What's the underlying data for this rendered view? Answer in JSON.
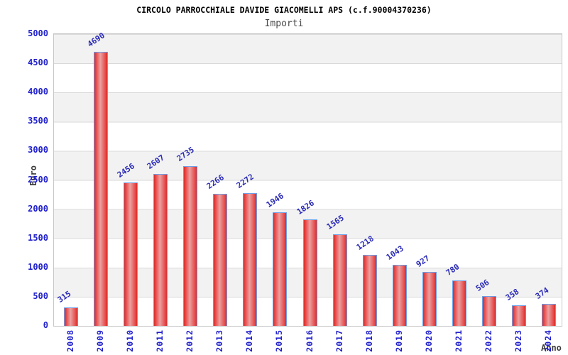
{
  "title": "CIRCOLO PARROCCHIALE DAVIDE GIACOMELLI APS (c.f.90004370236)",
  "subtitle": "Importi",
  "chart_data": {
    "type": "bar",
    "title": "CIRCOLO PARROCCHIALE DAVIDE GIACOMELLI APS (c.f.90004370236)",
    "subtitle": "Importi",
    "xlabel": "Anno",
    "ylabel": "Euro",
    "categories": [
      "2008",
      "2009",
      "2010",
      "2011",
      "2012",
      "2013",
      "2014",
      "2015",
      "2016",
      "2017",
      "2018",
      "2019",
      "2020",
      "2021",
      "2022",
      "2023",
      "2024"
    ],
    "values": [
      315,
      4690,
      2456,
      2607,
      2735,
      2266,
      2272,
      1946,
      1826,
      1565,
      1218,
      1043,
      927,
      780,
      506,
      358,
      374
    ],
    "value_labels": [
      "315",
      "4690",
      "2456",
      "2607",
      "2735",
      "2266",
      "2272",
      "1946",
      "1826",
      "1565",
      "1218",
      "1043",
      "927",
      "780",
      "506",
      "358",
      "374"
    ],
    "ylim": [
      0,
      5000
    ],
    "ytick_step": 500,
    "yticks": [
      0,
      500,
      1000,
      1500,
      2000,
      2500,
      3000,
      3500,
      4000,
      4500,
      5000
    ],
    "grid": "horizontal-bands-alternating",
    "legend_position": "none",
    "bar_labels_rotation_deg": -34,
    "xtick_rotation_deg": 90,
    "colors": {
      "bar_fill_edge": "#d32f2f",
      "bar_fill_center": "#eda0a0",
      "bar_border": "#6b9fe8",
      "tick_label": "#2020cc",
      "value_label": "#2a2ab8",
      "axis_title": "#3c3c3c",
      "band_gray": "#f2f2f2",
      "band_white": "#ffffff",
      "plot_border": "#c8c8c8",
      "title": "#000000",
      "subtitle": "#4a4a4a"
    }
  }
}
